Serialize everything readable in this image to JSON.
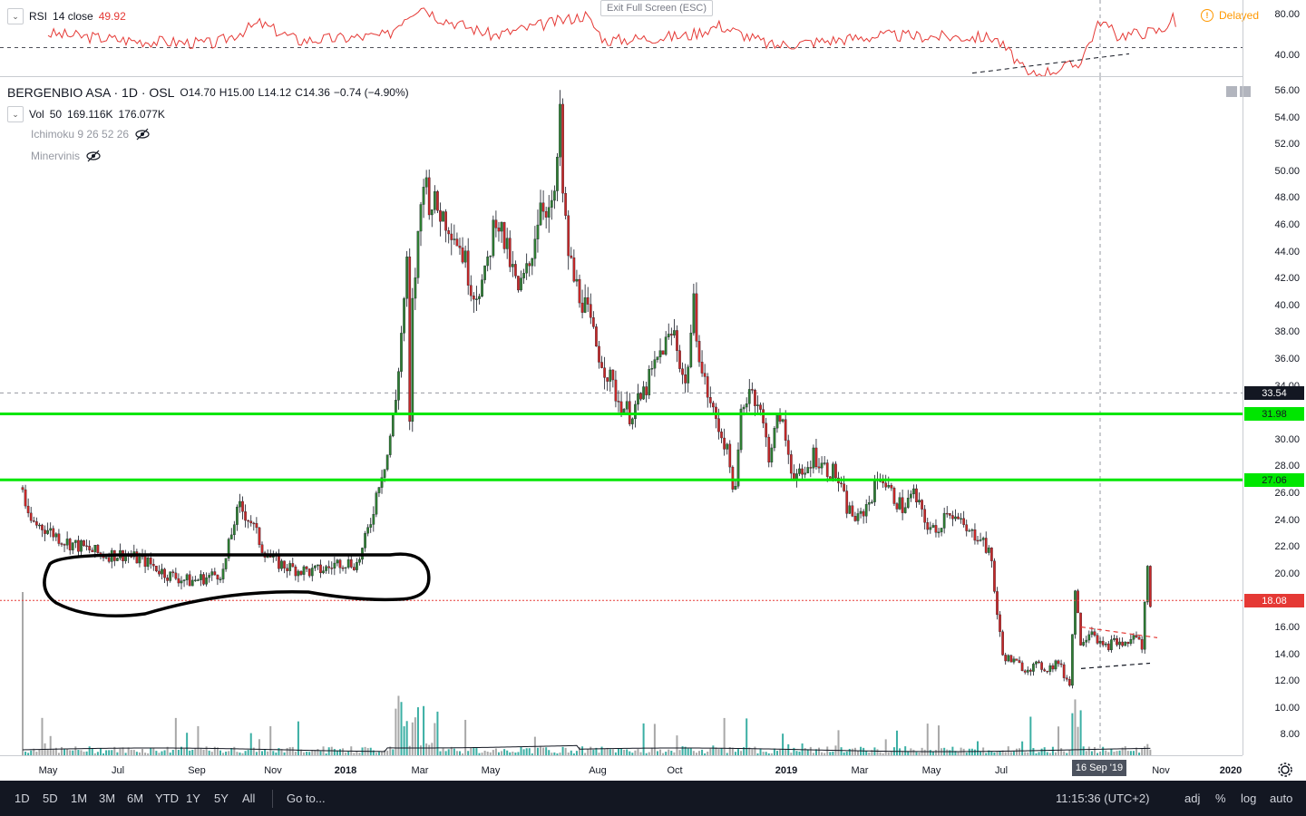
{
  "rsi_legend": {
    "name": "RSI",
    "params": "14 close",
    "value": "49.92",
    "value_color": "#e53935"
  },
  "rsi_axis": [
    "80.00",
    "40.00"
  ],
  "exit_fullscreen": "Exit Full Screen (ESC)",
  "delayed": "Delayed",
  "symbol_legend": {
    "title": "BERGENBIO ASA · 1D · OSL",
    "ohlc": [
      {
        "k": "O",
        "v": "14.70"
      },
      {
        "k": "H",
        "v": "15.00"
      },
      {
        "k": "L",
        "v": "14.12"
      },
      {
        "k": "C",
        "v": "14.36"
      },
      {
        "k": "",
        "v": "−0.74 (−4.90%)"
      }
    ]
  },
  "vol_legend": {
    "name": "Vol",
    "params": "50",
    "v1": "169.116K",
    "v2": "176.077K"
  },
  "hidden_indicators": [
    {
      "name": "Ichimoku 9 26 52 26"
    },
    {
      "name": "Minervinis"
    }
  ],
  "price_axis": [
    "56.00",
    "54.00",
    "52.00",
    "50.00",
    "48.00",
    "46.00",
    "44.00",
    "42.00",
    "40.00",
    "38.00",
    "36.00",
    "34.00",
    "32.00",
    "30.00",
    "28.00",
    "26.00",
    "24.00",
    "22.00",
    "20.00",
    "18.00",
    "16.00",
    "14.00",
    "12.00",
    "10.00",
    "8.00"
  ],
  "badges": {
    "crosshair": {
      "label": "33.54",
      "value": 33.54,
      "color": "#131722"
    },
    "level_high": {
      "label": "31.98",
      "value": 31.98,
      "color": "#00e600"
    },
    "level_low": {
      "label": "27.06",
      "value": 27.06,
      "color": "#00e600"
    },
    "last": {
      "label": "18.08",
      "value": 18.08,
      "color": "#e53935"
    }
  },
  "time_axis": [
    {
      "label": "May",
      "x": 53
    },
    {
      "label": "Jul",
      "x": 130
    },
    {
      "label": "Sep",
      "x": 217
    },
    {
      "label": "Nov",
      "x": 301
    },
    {
      "label": "2018",
      "x": 381,
      "bold": true
    },
    {
      "label": "Mar",
      "x": 463
    },
    {
      "label": "May",
      "x": 541
    },
    {
      "label": "Aug",
      "x": 659
    },
    {
      "label": "Oct",
      "x": 744
    },
    {
      "label": "2019",
      "x": 867,
      "bold": true
    },
    {
      "label": "Mar",
      "x": 948
    },
    {
      "label": "May",
      "x": 1027
    },
    {
      "label": "Jul",
      "x": 1104
    },
    {
      "label": "Nov",
      "x": 1280
    },
    {
      "label": "2020",
      "x": 1357,
      "bold": true
    }
  ],
  "crosshair_date": "16 Sep '19",
  "bottom_bar": {
    "ranges": [
      "1D",
      "5D",
      "1M",
      "3M",
      "6M",
      "YTD",
      "1Y",
      "5Y",
      "All"
    ],
    "goto": "Go to...",
    "clock": "11:15:36 (UTC+2)",
    "options": [
      "adj",
      "%",
      "log",
      "auto"
    ]
  },
  "chart_data": {
    "type": "candlestick",
    "title": "BERGENBIO ASA · 1D · OSL",
    "ylim": [
      7,
      57
    ],
    "x_range": [
      "2017-04",
      "2020-01"
    ],
    "price_path": [
      [
        0,
        26.5
      ],
      [
        2,
        24
      ],
      [
        8,
        23.5
      ],
      [
        15,
        22.5
      ],
      [
        22,
        22
      ],
      [
        28,
        21.5
      ],
      [
        36,
        21.5
      ],
      [
        44,
        21
      ],
      [
        52,
        20
      ],
      [
        60,
        19.5
      ],
      [
        66,
        19.8
      ],
      [
        72,
        20.2
      ],
      [
        76,
        24
      ],
      [
        78,
        25
      ],
      [
        82,
        24
      ],
      [
        86,
        22
      ],
      [
        90,
        21
      ],
      [
        96,
        20.5
      ],
      [
        104,
        20.2
      ],
      [
        110,
        20.5
      ],
      [
        114,
        21
      ],
      [
        120,
        20.8
      ],
      [
        122,
        21.8
      ],
      [
        125,
        24
      ],
      [
        128,
        27
      ],
      [
        131,
        29
      ],
      [
        134,
        33
      ],
      [
        136,
        38
      ],
      [
        138,
        43
      ],
      [
        139,
        31
      ],
      [
        140,
        40
      ],
      [
        142,
        45
      ],
      [
        144,
        50
      ],
      [
        146,
        48
      ],
      [
        150,
        47
      ],
      [
        154,
        46
      ],
      [
        158,
        44
      ],
      [
        162,
        41
      ],
      [
        166,
        42
      ],
      [
        170,
        47
      ],
      [
        174,
        44
      ],
      [
        178,
        41
      ],
      [
        182,
        43
      ],
      [
        186,
        48
      ],
      [
        190,
        47
      ],
      [
        192,
        50
      ],
      [
        193,
        55
      ],
      [
        194,
        48
      ],
      [
        196,
        44
      ],
      [
        198,
        42
      ],
      [
        202,
        40
      ],
      [
        206,
        37
      ],
      [
        210,
        35
      ],
      [
        214,
        33
      ],
      [
        218,
        32
      ],
      [
        222,
        33
      ],
      [
        226,
        35
      ],
      [
        230,
        37
      ],
      [
        234,
        38
      ],
      [
        238,
        34
      ],
      [
        241,
        40
      ],
      [
        244,
        35
      ],
      [
        248,
        32
      ],
      [
        252,
        30
      ],
      [
        256,
        26
      ],
      [
        258,
        32
      ],
      [
        261,
        34
      ],
      [
        264,
        33
      ],
      [
        268,
        29
      ],
      [
        272,
        32
      ],
      [
        276,
        28
      ],
      [
        280,
        27
      ],
      [
        284,
        29
      ],
      [
        288,
        28
      ],
      [
        292,
        27.5
      ],
      [
        296,
        25
      ],
      [
        300,
        24
      ],
      [
        304,
        25.5
      ],
      [
        308,
        27.5
      ],
      [
        312,
        26
      ],
      [
        316,
        25
      ],
      [
        320,
        26
      ],
      [
        324,
        24
      ],
      [
        328,
        23
      ],
      [
        332,
        25
      ],
      [
        336,
        24
      ],
      [
        340,
        23
      ],
      [
        344,
        23
      ],
      [
        348,
        21
      ],
      [
        350,
        17
      ],
      [
        352,
        14
      ],
      [
        356,
        13.5
      ],
      [
        360,
        13
      ],
      [
        364,
        13.2
      ],
      [
        368,
        13
      ],
      [
        372,
        13.5
      ],
      [
        374,
        12.5
      ],
      [
        376,
        12
      ],
      [
        378,
        19
      ],
      [
        380,
        15
      ],
      [
        384,
        16
      ],
      [
        388,
        14.5
      ],
      [
        392,
        15
      ],
      [
        396,
        14.8
      ],
      [
        400,
        15.5
      ],
      [
        402,
        14.5
      ],
      [
        404,
        21
      ],
      [
        405,
        18
      ]
    ],
    "rsi_path": [
      [
        0,
        62
      ],
      [
        30,
        55
      ],
      [
        60,
        52
      ],
      [
        76,
        72
      ],
      [
        90,
        55
      ],
      [
        122,
        60
      ],
      [
        128,
        78
      ],
      [
        134,
        90
      ],
      [
        140,
        78
      ],
      [
        160,
        60
      ],
      [
        193,
        80
      ],
      [
        200,
        55
      ],
      [
        230,
        60
      ],
      [
        241,
        70
      ],
      [
        260,
        50
      ],
      [
        300,
        60
      ],
      [
        340,
        58
      ],
      [
        348,
        35
      ],
      [
        352,
        20
      ],
      [
        370,
        32
      ],
      [
        378,
        75
      ],
      [
        384,
        60
      ],
      [
        400,
        65
      ],
      [
        404,
        78
      ],
      [
        405,
        68
      ]
    ],
    "rsi_ylim": [
      20,
      95
    ],
    "horizontal_levels": [
      31.98,
      27.06
    ],
    "last_close": 18.08
  }
}
